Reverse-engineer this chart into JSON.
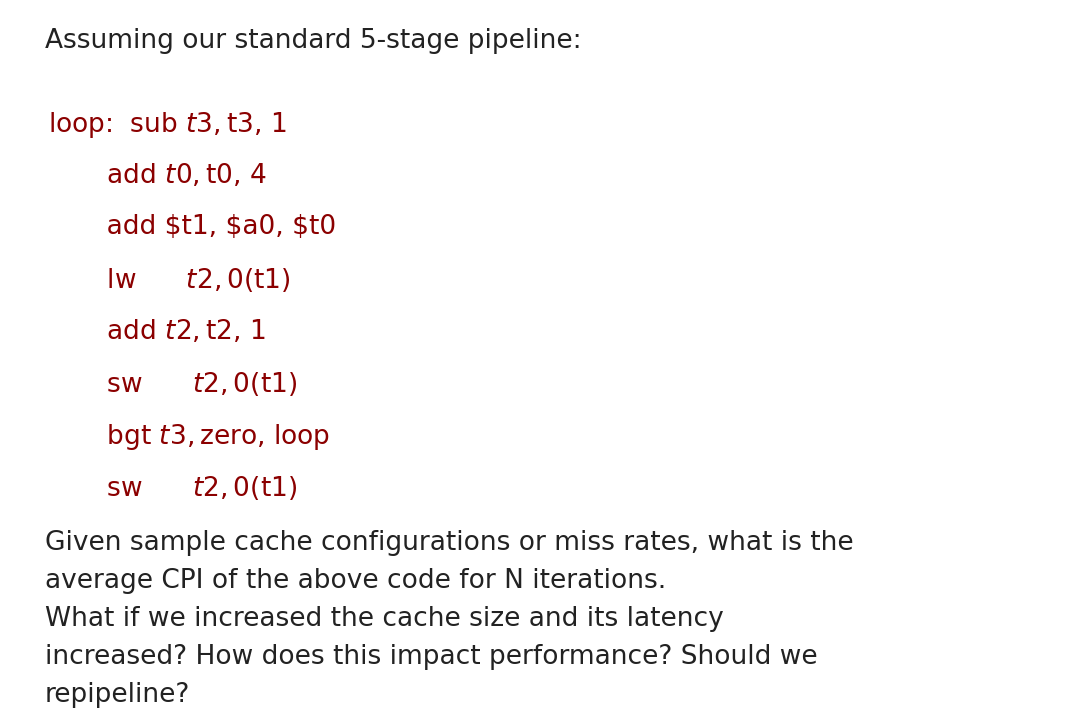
{
  "background_color": "#ffffff",
  "title_text": "Assuming our standard 5-stage pipeline:",
  "title_color": "#222222",
  "title_fontsize": 19,
  "code_lines": [
    "loop:  sub $t3, $t3, 1",
    "       add $t0, $t0, 4",
    "       add $t1, $a0, $t0",
    "       lw      $t2,0($t1)",
    "       add $t2, $t2, 1",
    "       sw      $t2,0($t1)",
    "       bgt $t3, $zero, loop",
    "       sw      $t2,0($t1)"
  ],
  "code_color": "#8B0000",
  "code_fontsize": 19,
  "question_lines": [
    "Given sample cache configurations or miss rates, what is the",
    "average CPI of the above code for N iterations.",
    "What if we increased the cache size and its latency",
    "increased? How does this impact performance? Should we",
    "repipeline?"
  ],
  "question_color": "#222222",
  "question_fontsize": 19
}
